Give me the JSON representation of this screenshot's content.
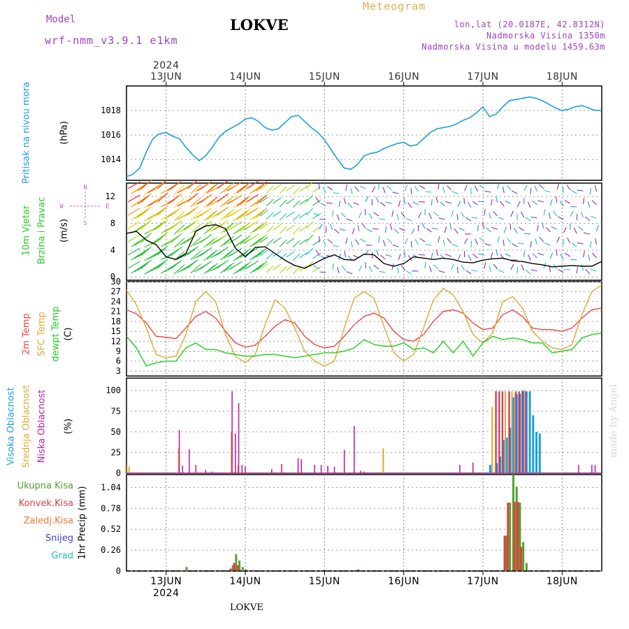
{
  "header": {
    "model_label": "Model",
    "model_name": "wrf-nmm_v3.9.1  e1km",
    "station": "LOKVE",
    "meteogram": "Meteogram",
    "lonlat": "lon,lat (20.0187E, 42.8312N)",
    "elevation": "Nadmorska Visina 1350m",
    "model_elevation": "Nadmorska Visina u modelu 1459.63m"
  },
  "footer_label": "LOKVE",
  "watermark": "made by Angel",
  "year": "2024",
  "dates": [
    "13JUN",
    "14JUN",
    "15JUN",
    "16JUN",
    "17JUN",
    "18JUN"
  ],
  "panels": {
    "pressure": {
      "ylabel": "Pritisak na nivou mora",
      "unit": "(hPa)"
    },
    "wind": {
      "ylabel1": "10m Vjetar",
      "ylabel2": "Brzina i Pravac",
      "unit": "(m/s)",
      "compass": {
        "n": "N",
        "s": "S",
        "w": "W",
        "e": "E"
      }
    },
    "temp": {
      "labels": [
        "2m Temp",
        "SFC Temp",
        "dewpt Temp"
      ],
      "unit": "(C)"
    },
    "cloud": {
      "labels": [
        "Visoka Oblacnost",
        "Srednja Oblacnost",
        "Niska Oblacnost"
      ],
      "unit": "(%)"
    },
    "precip": {
      "legend": [
        "Ukupna Kisa",
        "Konvek.Kisa",
        "Zaledj.Kisa",
        "Snijeg",
        "Grad"
      ],
      "ylabel": "1hr Precip (mm)"
    }
  },
  "colors": {
    "pressure": "#1a9ee0",
    "temp2m": "#ee4444",
    "sfc": "#e0a830",
    "dewpt": "#22cc22",
    "cloud_high": "#1a9ee0",
    "cloud_mid": "#e0a830",
    "cloud_low": "#c020a0",
    "rain": "#55a030",
    "conv": "#e04040",
    "frz": "#f07830",
    "snow": "#4040e0",
    "hail": "#20c0b0"
  },
  "chart_data": [
    {
      "type": "line",
      "title": "Pritisak na nivou mora",
      "ylabel": "(hPa)",
      "ylim": [
        1012.3,
        1020.0
      ],
      "yticks": [
        1014,
        1016,
        1018
      ],
      "x_hours": [
        0,
        2,
        4,
        6,
        8,
        10,
        12,
        14,
        16,
        18,
        20,
        22,
        24,
        26,
        28,
        30,
        32,
        34,
        36,
        38,
        40,
        42,
        44,
        46,
        48,
        50,
        52,
        54,
        56,
        58,
        60,
        62,
        64,
        66,
        68,
        70,
        72,
        74,
        76,
        78,
        80,
        82,
        84,
        86,
        88,
        90,
        92,
        94,
        96,
        98,
        100,
        102,
        104,
        106,
        108,
        110,
        112,
        114,
        116,
        118,
        120,
        122,
        124,
        126,
        128,
        130,
        132,
        134,
        136,
        138,
        140,
        142,
        144
      ],
      "values": [
        1012.6,
        1012.8,
        1013.3,
        1014.6,
        1015.7,
        1016.1,
        1016.2,
        1015.9,
        1015.7,
        1015.0,
        1014.4,
        1013.9,
        1014.3,
        1015.0,
        1015.8,
        1016.3,
        1016.6,
        1016.9,
        1017.3,
        1017.4,
        1017.1,
        1016.6,
        1016.4,
        1016.5,
        1017.0,
        1017.5,
        1017.6,
        1017.1,
        1016.6,
        1016.2,
        1015.6,
        1014.8,
        1014.0,
        1013.3,
        1013.2,
        1013.6,
        1014.3,
        1014.5,
        1014.6,
        1014.9,
        1015.1,
        1015.3,
        1015.4,
        1015.1,
        1015.2,
        1015.7,
        1016.2,
        1016.5,
        1016.6,
        1016.7,
        1016.9,
        1017.2,
        1017.4,
        1017.8,
        1018.3,
        1017.5,
        1017.7,
        1018.3,
        1018.8,
        1018.9,
        1019.0,
        1019.1,
        1019.0,
        1018.8,
        1018.5,
        1018.2,
        1018.0,
        1018.1,
        1018.3,
        1018.4,
        1018.2,
        1018.0,
        1018.0
      ]
    },
    {
      "type": "line",
      "title": "10m Vjetar Brzina i Pravac",
      "ylabel": "(m/s)",
      "ylim": [
        -0.5,
        14
      ],
      "yticks": [
        0,
        4,
        8,
        12
      ],
      "x_hours": [
        0,
        3,
        6,
        9,
        12,
        15,
        18,
        21,
        24,
        27,
        30,
        33,
        36,
        39,
        42,
        45,
        48,
        51,
        54,
        57,
        60,
        63,
        66,
        69,
        72,
        75,
        78,
        81,
        84,
        87,
        90,
        93,
        96,
        99,
        102,
        105,
        108,
        111,
        114,
        117,
        120,
        123,
        126,
        129,
        132,
        135,
        138,
        141,
        144
      ],
      "speed": [
        6.5,
        6.8,
        5.5,
        4.8,
        3.0,
        2.6,
        3.5,
        6.8,
        7.6,
        7.8,
        7.2,
        4.3,
        3.0,
        4.4,
        4.5,
        3.5,
        2.5,
        1.7,
        1.3,
        2.0,
        2.8,
        3.3,
        2.6,
        2.5,
        3.4,
        3.3,
        2.0,
        1.6,
        2.0,
        3.0,
        2.8,
        2.6,
        2.8,
        2.6,
        2.2,
        2.1,
        2.5,
        2.7,
        2.8,
        2.4,
        2.3,
        2.0,
        1.8,
        1.5,
        1.6,
        1.7,
        1.6,
        1.6,
        2.3
      ]
    },
    {
      "type": "line",
      "title": "2m Temp / SFC Temp / dewpt Temp",
      "ylabel": "(C)",
      "ylim": [
        1.5,
        30
      ],
      "yticks": [
        3,
        6,
        9,
        12,
        15,
        18,
        21,
        24,
        27,
        30
      ],
      "x_hours": [
        0,
        3,
        6,
        9,
        12,
        15,
        18,
        21,
        24,
        27,
        30,
        33,
        36,
        39,
        42,
        45,
        48,
        51,
        54,
        57,
        60,
        63,
        66,
        69,
        72,
        75,
        78,
        81,
        84,
        87,
        90,
        93,
        96,
        99,
        102,
        105,
        108,
        111,
        114,
        117,
        120,
        123,
        126,
        129,
        132,
        135,
        138,
        141,
        144
      ],
      "series": [
        {
          "name": "2m Temp",
          "values": [
            21.5,
            20.3,
            17.5,
            13.5,
            13.2,
            12.8,
            16.0,
            19.5,
            21.0,
            19.0,
            15.0,
            11.5,
            10.2,
            10.8,
            13.5,
            16.5,
            18.5,
            17.5,
            13.5,
            11.0,
            10.0,
            10.5,
            13.5,
            17.0,
            19.5,
            20.5,
            19.0,
            15.0,
            12.5,
            12.0,
            14.0,
            18.0,
            21.0,
            21.5,
            20.5,
            17.5,
            15.5,
            16.0,
            20.0,
            21.5,
            19.5,
            16.0,
            15.5,
            15.5,
            15.0,
            16.0,
            19.0,
            21.5,
            22.0
          ]
        },
        {
          "name": "SFC Temp",
          "values": [
            27.5,
            23.0,
            16.0,
            8.0,
            7.0,
            7.5,
            14.0,
            24.0,
            27.0,
            24.0,
            14.0,
            7.5,
            5.5,
            8.0,
            17.0,
            24.5,
            22.0,
            16.0,
            9.0,
            6.0,
            4.5,
            6.0,
            16.0,
            25.0,
            27.0,
            25.0,
            16.5,
            8.5,
            6.0,
            8.0,
            16.0,
            24.5,
            28.0,
            26.0,
            21.0,
            14.0,
            11.5,
            14.5,
            24.0,
            25.5,
            22.0,
            15.0,
            12.0,
            10.0,
            9.5,
            11.0,
            20.0,
            27.0,
            29.0
          ]
        },
        {
          "name": "dewpt Temp",
          "values": [
            13.5,
            10.0,
            4.5,
            5.5,
            6.0,
            6.0,
            10.0,
            11.5,
            9.5,
            9.5,
            8.5,
            8.0,
            7.5,
            7.5,
            8.0,
            8.0,
            7.5,
            7.0,
            7.5,
            8.0,
            8.5,
            8.5,
            9.0,
            10.0,
            12.5,
            11.0,
            10.5,
            10.5,
            11.5,
            9.5,
            10.0,
            8.5,
            12.0,
            8.5,
            12.0,
            7.5,
            11.5,
            13.5,
            12.5,
            13.0,
            12.5,
            11.5,
            11.5,
            8.5,
            9.0,
            9.5,
            13.0,
            14.0,
            14.5
          ]
        }
      ]
    },
    {
      "type": "bar",
      "title": "Visoka / Srednja / Niska Oblacnost",
      "ylabel": "(%)",
      "ylim": [
        0,
        100
      ],
      "yticks": [
        0,
        25,
        50,
        75,
        100
      ],
      "series": [
        {
          "name": "Visoka Oblacnost",
          "x_hours": [
            110,
            112,
            113,
            114,
            115,
            116,
            117,
            118,
            119,
            120,
            121,
            122,
            123,
            124,
            125
          ],
          "values": [
            10,
            12,
            20,
            40,
            43,
            55,
            92,
            96,
            96,
            100,
            99,
            99,
            70,
            50,
            48
          ]
        },
        {
          "name": "Srednja Oblacnost",
          "x_hours": [
            0,
            1,
            16,
            32,
            34,
            78,
            111,
            112,
            113,
            114,
            115,
            116,
            117,
            118,
            119,
            120,
            121
          ],
          "values": [
            10,
            8,
            30,
            50,
            10,
            30,
            80,
            99,
            99,
            99,
            99,
            99,
            99,
            99,
            99,
            99,
            99
          ]
        },
        {
          "name": "Niska Oblacnost",
          "x_hours": [
            16,
            17,
            19,
            21,
            24,
            26,
            32,
            33,
            34,
            35,
            36,
            44,
            47,
            52,
            53,
            57,
            59,
            61,
            63,
            66,
            69,
            71,
            72,
            101,
            105,
            112,
            113,
            114,
            116,
            118,
            119,
            120,
            121,
            137,
            141,
            142
          ],
          "values": [
            52,
            9,
            29,
            10,
            4,
            2,
            99,
            48,
            85,
            10,
            8,
            5,
            11,
            18,
            17,
            10,
            10,
            9,
            8,
            28,
            57,
            3,
            2,
            10,
            13,
            99,
            99,
            99,
            99,
            99,
            99,
            99,
            99,
            10,
            10,
            10
          ]
        }
      ]
    },
    {
      "type": "bar",
      "title": "1hr Precip",
      "ylabel": "1hr Precip (mm)",
      "ylim": [
        0,
        1.2
      ],
      "yticks": [
        0,
        0.26,
        0.52,
        0.78,
        1.04
      ],
      "series": [
        {
          "name": "Ukupna Kisa",
          "x_hours": [
            18,
            32,
            33,
            34,
            35,
            36,
            70,
            71,
            115,
            116,
            117,
            118,
            119,
            120,
            121
          ],
          "values": [
            0.05,
            0.07,
            0.21,
            0.13,
            0.05,
            0.02,
            0.02,
            0.01,
            0.44,
            0.85,
            1.2,
            1.05,
            0.85,
            0.36,
            0.1
          ]
        },
        {
          "name": "Konvek.Kisa",
          "x_hours": [
            32,
            33,
            34,
            115,
            116,
            118,
            119,
            120
          ],
          "values": [
            0.03,
            0.1,
            0.07,
            0.44,
            0.85,
            0.86,
            0.86,
            0.3
          ]
        },
        {
          "name": "Zaledj.Kisa",
          "x_hours": [],
          "values": []
        },
        {
          "name": "Snijeg",
          "x_hours": [],
          "values": []
        },
        {
          "name": "Grad",
          "x_hours": [],
          "values": []
        }
      ]
    }
  ]
}
